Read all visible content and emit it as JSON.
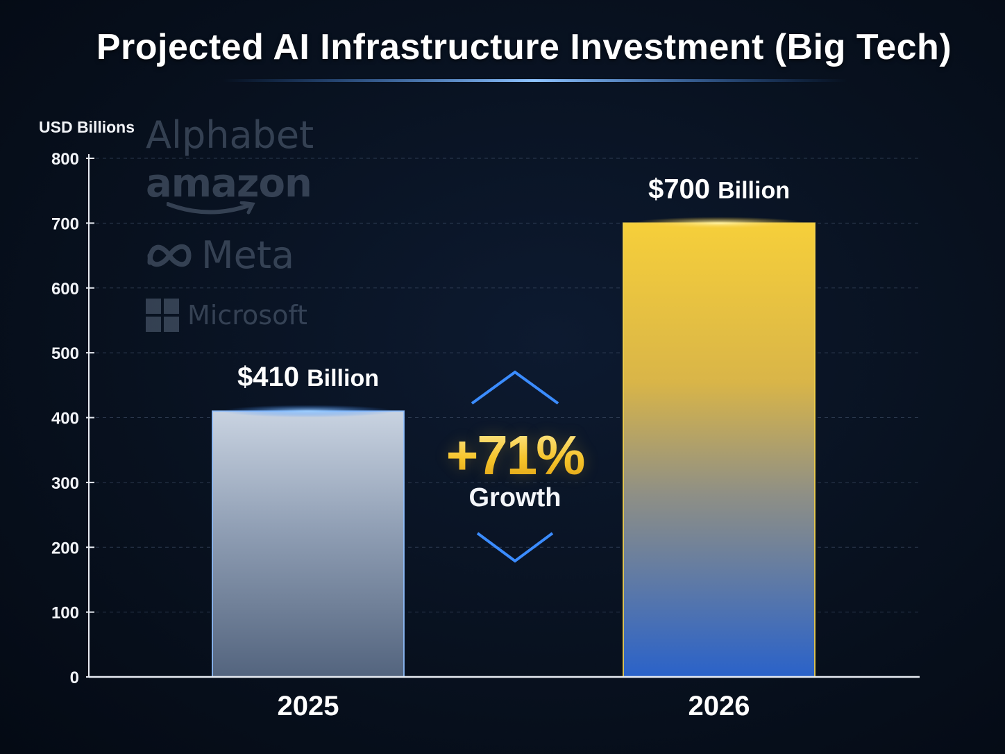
{
  "title": "Projected AI Infrastructure Investment (Big Tech)",
  "colors": {
    "background": "#08111f",
    "bar_2025": "#9fb0c8",
    "bar_2026_top": "#f6cf3a",
    "bar_2026_bottom": "#2a62c9",
    "growth_accent": "#f7c52c",
    "chevron": "#3b8cff"
  },
  "logos": [
    {
      "name": "Alphabet",
      "icon": "alphabet-logo"
    },
    {
      "name": "amazon",
      "icon": "amazon-smile-logo"
    },
    {
      "name": "Meta",
      "icon": "meta-infinity-logo"
    },
    {
      "name": "Microsoft",
      "icon": "microsoft-grid-logo"
    }
  ],
  "growth": {
    "value": "+71%",
    "label": "Growth"
  },
  "chart_data": {
    "type": "bar",
    "title": "Projected AI Infrastructure Investment (Big Tech)",
    "ylabel": "USD Billions",
    "xlabel": "",
    "categories": [
      "2025",
      "2026"
    ],
    "values": [
      410,
      700
    ],
    "value_labels": [
      {
        "amount": "$410",
        "unit": "Billion"
      },
      {
        "amount": "$700",
        "unit": "Billion"
      }
    ],
    "ylim": [
      0,
      800
    ],
    "yticks": [
      0,
      100,
      200,
      300,
      400,
      500,
      600,
      700,
      800
    ],
    "grid": true
  }
}
